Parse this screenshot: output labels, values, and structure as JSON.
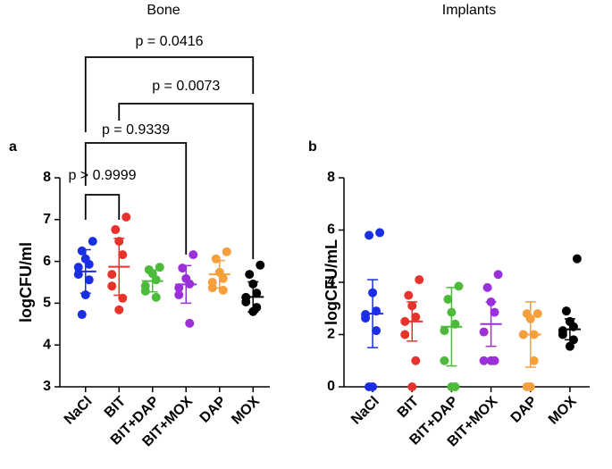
{
  "chart_data": [
    {
      "type": "dot",
      "title": "Bone",
      "panel_label": "a",
      "ylabel": "logCFU/ml",
      "ylim": [
        3,
        8
      ],
      "yticks": [
        3,
        4,
        5,
        6,
        7,
        8
      ],
      "series": [
        {
          "name": "NaCl",
          "color": "#1a2ee6",
          "values": [
            6.48,
            6.25,
            6.06,
            5.93,
            5.86,
            5.69,
            5.56,
            5.2,
            4.73
          ],
          "mean": 5.76,
          "sd": 0.52
        },
        {
          "name": "BIT",
          "color": "#e8332c",
          "values": [
            7.06,
            6.76,
            6.48,
            6.16,
            5.69,
            5.41,
            5.12,
            4.84
          ],
          "mean": 5.87,
          "sd": 0.68
        },
        {
          "name": "BIT+DAP",
          "color": "#4cbb3a",
          "values": [
            5.86,
            5.8,
            5.71,
            5.56,
            5.41,
            5.29,
            5.14
          ],
          "mean": 5.53,
          "sd": 0.26
        },
        {
          "name": "BIT+MOX",
          "color": "#9b30d8",
          "values": [
            6.16,
            5.84,
            5.59,
            5.46,
            5.37,
            5.2,
            4.52
          ],
          "mean": 5.45,
          "sd": 0.45
        },
        {
          "name": "DAP",
          "color": "#f5a03c",
          "values": [
            6.23,
            6.06,
            5.74,
            5.59,
            5.5,
            5.37,
            5.31
          ],
          "mean": 5.69,
          "sd": 0.33
        },
        {
          "name": "MOX",
          "color": "#000000",
          "values": [
            5.91,
            5.69,
            5.46,
            5.24,
            5.14,
            5.03,
            4.9,
            4.8
          ],
          "mean": 5.15,
          "sd": 0.36
        }
      ],
      "comparisons": [
        {
          "label": "p > 0.9999",
          "from": "NaCl",
          "to": "BIT"
        },
        {
          "label": "p = 0.9339",
          "from": "NaCl",
          "to": "BIT+MOX"
        },
        {
          "label": "p = 0.0073",
          "from": "BIT",
          "to": "MOX"
        },
        {
          "label": "p = 0.0416",
          "from": "NaCl",
          "to": "MOX"
        }
      ]
    },
    {
      "type": "dot",
      "title": "Implants",
      "panel_label": "b",
      "ylabel": "logCFU/mL",
      "ylim": [
        0,
        8
      ],
      "yticks": [
        0,
        2,
        4,
        6,
        8
      ],
      "series": [
        {
          "name": "NaCl",
          "color": "#1a2ee6",
          "values": [
            5.9,
            5.8,
            3.6,
            2.9,
            2.77,
            2.63,
            2.15,
            0,
            0
          ],
          "mean": 2.8,
          "sd": 1.3
        },
        {
          "name": "BIT",
          "color": "#e8332c",
          "values": [
            4.1,
            3.5,
            3.1,
            2.67,
            2.5,
            2.0,
            1.0,
            0
          ],
          "mean": 2.5,
          "sd": 0.75
        },
        {
          "name": "BIT+DAP",
          "color": "#4cbb3a",
          "values": [
            3.85,
            3.35,
            2.85,
            2.4,
            2.15,
            1.0,
            0,
            0
          ],
          "mean": 2.3,
          "sd": 1.5
        },
        {
          "name": "BIT+MOX",
          "color": "#9b30d8",
          "values": [
            4.3,
            3.8,
            3.25,
            2.85,
            2.1,
            1.0,
            1.0,
            1.0
          ],
          "mean": 2.4,
          "sd": 0.85
        },
        {
          "name": "DAP",
          "color": "#f5a03c",
          "values": [
            2.8,
            2.8,
            2.6,
            2.0,
            2.0,
            2.0,
            1.0,
            0,
            0
          ],
          "mean": 2.0,
          "sd": 1.25
        },
        {
          "name": "MOX",
          "color": "#000000",
          "values": [
            4.9,
            2.9,
            2.5,
            2.3,
            2.15,
            2.0,
            1.8,
            1.55
          ],
          "mean": 2.2,
          "sd": 0.4
        }
      ]
    }
  ]
}
